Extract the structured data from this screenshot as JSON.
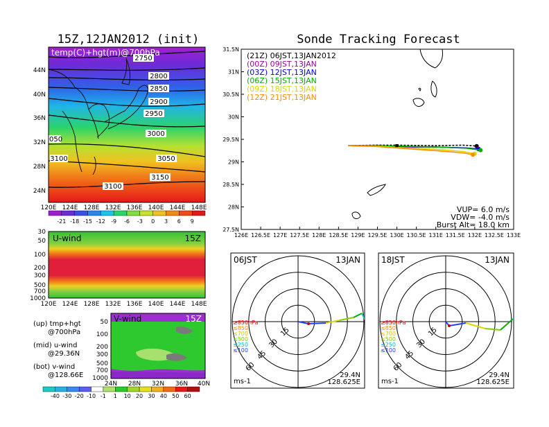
{
  "init_title": "15Z,12JAN2012 (init)",
  "main_title": "Sonde Tracking Forecast",
  "map700": {
    "label": "temp(C)+hgt(m)@700hPa",
    "lat_ticks": [
      "44N",
      "40N",
      "36N",
      "32N",
      "28N",
      "24N"
    ],
    "lon_ticks": [
      "120E",
      "124E",
      "128E",
      "132E",
      "136E",
      "140E",
      "144E",
      "148E"
    ],
    "contour_labels": [
      "2750",
      "2800",
      "2850",
      "2900",
      "2950",
      "3000",
      "3050",
      "3100",
      "3150",
      "3100",
      "050"
    ],
    "colorbar": [
      "-21",
      "-18",
      "-15",
      "-12",
      "-9",
      "-6",
      "-3",
      "0",
      "3",
      "6",
      "9"
    ]
  },
  "uwind": {
    "label": "U-wind",
    "time": "15Z",
    "p_ticks": [
      "30",
      "50",
      "100",
      "200",
      "300",
      "500",
      "700",
      "1000"
    ],
    "lon_ticks": [
      "120E",
      "124E",
      "128E",
      "132E",
      "136E",
      "140E",
      "144E",
      "148E"
    ]
  },
  "vwind": {
    "label": "V-wind",
    "time": "15Z",
    "p_ticks": [
      "50",
      "100",
      "200",
      "300",
      "500",
      "700",
      "1000"
    ],
    "lat_ticks": [
      "24N",
      "28N",
      "32N",
      "36N",
      "40N"
    ],
    "colorbar": [
      "-40",
      "-30",
      "-20",
      "-10",
      "-1",
      "1",
      "10",
      "20",
      "30",
      "40",
      "50",
      "60"
    ]
  },
  "notes": [
    {
      "a": "(up) tmp+hgt",
      "b": "@700hPa"
    },
    {
      "a": "(mid) u-wind",
      "b": "@29.36N"
    },
    {
      "a": "(bot) v-wind",
      "b": "@128.66E"
    }
  ],
  "chart_data": {
    "type": "line",
    "title": "Sonde Tracking Forecast",
    "xlim": [
      126,
      133
    ],
    "ylim": [
      27.5,
      31.5
    ],
    "x_ticks": [
      "126E",
      "126.5E",
      "127E",
      "127.5E",
      "128E",
      "128.5E",
      "129E",
      "129.5E",
      "130E",
      "130.5E",
      "131E",
      "131.5E",
      "132E",
      "132.5E",
      "133E"
    ],
    "y_ticks": [
      "31.5N",
      "31N",
      "30.5N",
      "30N",
      "29.5N",
      "29N",
      "28.5N",
      "28N",
      "27.5N"
    ],
    "series": [
      {
        "name": "(21Z) 06JST,13JAN2012",
        "color": "#000000",
        "dash": true,
        "x": [
          128.75,
          129.5,
          130.0,
          131.0,
          131.7,
          132.05
        ],
        "y": [
          29.36,
          29.37,
          29.37,
          29.36,
          29.37,
          29.35
        ]
      },
      {
        "name": "(00Z) 09JST,13JAN",
        "color": "#a000a0",
        "dash": false,
        "x": [
          128.75,
          129.5,
          130.0,
          131.0,
          131.7,
          132.1
        ],
        "y": [
          29.36,
          29.35,
          29.33,
          29.33,
          29.31,
          29.29
        ]
      },
      {
        "name": "(03Z) 12JST,13JAN",
        "color": "#0000dd",
        "dash": false,
        "x": [
          128.75,
          129.5,
          130.0,
          131.0,
          131.8,
          132.1
        ],
        "y": [
          29.36,
          29.36,
          29.34,
          29.33,
          29.31,
          29.28
        ]
      },
      {
        "name": "(06Z) 15JST,13JAN",
        "color": "#00b000",
        "dash": false,
        "x": [
          128.75,
          129.5,
          130.0,
          131.0,
          131.8,
          132.15
        ],
        "y": [
          29.36,
          29.35,
          29.35,
          29.33,
          29.3,
          29.26
        ]
      },
      {
        "name": "(09Z) 18JST,13JAN",
        "color": "#d8d800",
        "dash": false,
        "x": [
          128.75,
          129.5,
          130.0,
          131.0,
          131.7,
          132.0
        ],
        "y": [
          29.36,
          29.35,
          29.32,
          29.28,
          29.23,
          29.18
        ]
      },
      {
        "name": "(12Z) 21JST,13JAN",
        "color": "#ff8c00",
        "dash": false,
        "x": [
          128.75,
          129.5,
          130.0,
          131.0,
          131.7,
          131.95
        ],
        "y": [
          29.36,
          29.34,
          29.31,
          29.25,
          29.2,
          29.16
        ]
      }
    ],
    "info": [
      "VUP= 6.0 m/s",
      "VDW= -4.0 m/s",
      "Burst Alt= 18.0 km"
    ]
  },
  "hodo_left": {
    "time": "06JST",
    "date": "13JAN",
    "unit": "ms-1",
    "lat": "29.4N",
    "lon": "128.625E"
  },
  "hodo_right": {
    "time": "18JST",
    "date": "13JAN",
    "unit": "ms-1",
    "lat": "29.4N",
    "lon": "128.625E"
  },
  "hodo_legend": [
    {
      "label": "≥850hPa",
      "color": "#ff0000"
    },
    {
      "label": "≤850",
      "color": "#ff8c00"
    },
    {
      "label": "≤700",
      "color": "#e0c000"
    },
    {
      "label": "≤500",
      "color": "#7fd000"
    },
    {
      "label": "≤250",
      "color": "#00c0c0"
    },
    {
      "label": "≤100",
      "color": "#2040ff"
    }
  ],
  "hodo_ring_labels": [
    "15",
    "30",
    "45",
    "60"
  ]
}
